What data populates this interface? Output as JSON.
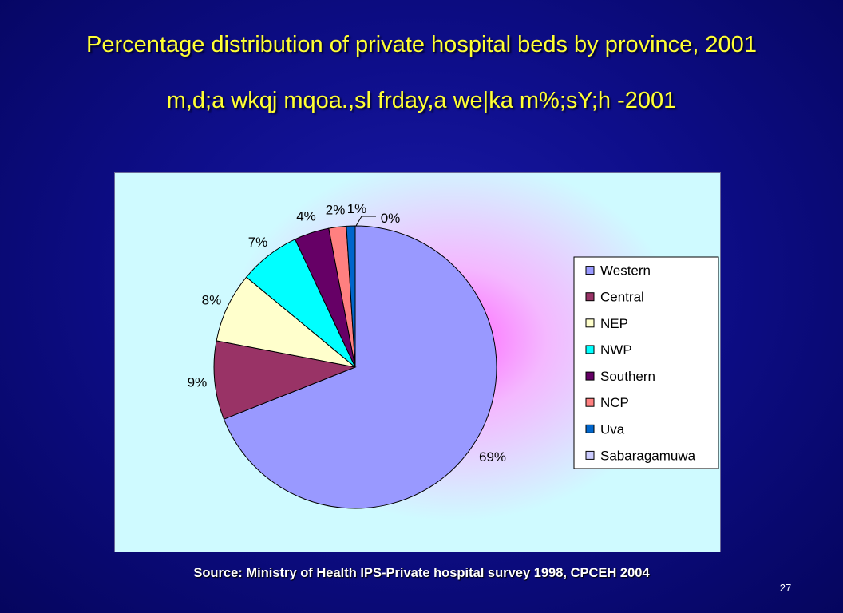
{
  "slide": {
    "title": "Percentage distribution of private hospital beds by province, 2001",
    "subtitle": "m,d;a wkqj mqoa.,sl frday,a we|ka m%;sY;h -2001",
    "source": "Source: Ministry of Health IPS-Private hospital survey 1998, CPCEH 2004",
    "page_number": "27"
  },
  "chart_data": {
    "type": "pie",
    "title": "",
    "categories": [
      "Western",
      "Central",
      "NEP",
      "NWP",
      "Southern",
      "NCP",
      "Uva",
      "Sabaragamuwa"
    ],
    "values": [
      69,
      9,
      8,
      7,
      4,
      2,
      1,
      0
    ],
    "labels": [
      "69%",
      "9%",
      "8%",
      "7%",
      "4%",
      "2%",
      "1%",
      "0%"
    ],
    "colors": [
      "#9999ff",
      "#993366",
      "#ffffcc",
      "#00ffff",
      "#660066",
      "#ff8080",
      "#0066cc",
      "#ccccff"
    ],
    "legend_position": "right"
  }
}
